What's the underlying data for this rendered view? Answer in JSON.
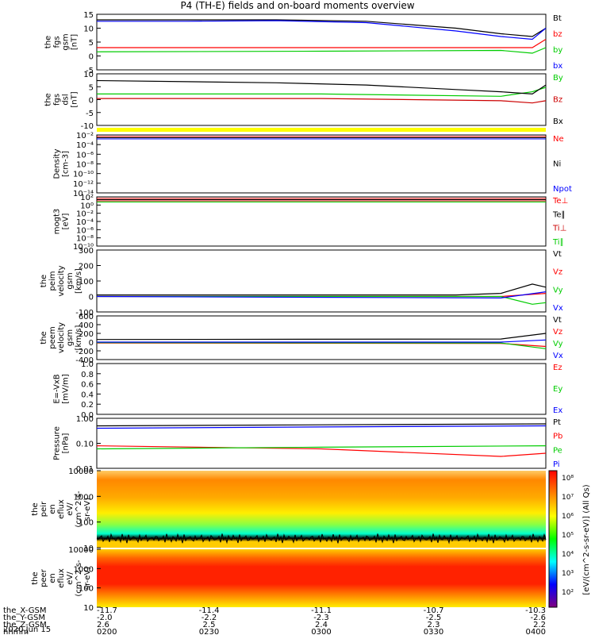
{
  "title": "P4 (TH-E) fields and on-board moments overview",
  "chart_data": {
    "type": "line",
    "title": "P4 (TH-E) fields and on-board moments overview",
    "panels": [
      {
        "id": "fgs",
        "ylabel": [
          "the",
          "fgs",
          "gsm",
          "[nT]"
        ],
        "ylim": [
          -5,
          15
        ],
        "yticks": [
          "15",
          "10",
          "5",
          "0",
          "-5"
        ],
        "series": [
          {
            "name": "Bt",
            "color": "#000000",
            "x": [
              0,
              0.2,
              0.4,
              0.6,
              0.8,
              0.9,
              0.97,
              1
            ],
            "y": [
              13,
              13,
              13,
              12.5,
              10,
              8,
              7,
              10
            ]
          },
          {
            "name": "bz",
            "color": "#ff0000",
            "x": [
              0,
              0.5,
              0.9,
              0.97,
              1
            ],
            "y": [
              3,
              3,
              3,
              3,
              6
            ]
          },
          {
            "name": "by",
            "color": "#00cc00",
            "x": [
              0,
              0.5,
              0.9,
              0.97,
              1
            ],
            "y": [
              1.5,
              1.7,
              2,
              1,
              3
            ]
          },
          {
            "name": "bx",
            "color": "#0000ff",
            "x": [
              0,
              0.2,
              0.4,
              0.6,
              0.8,
              0.9,
              0.97,
              1
            ],
            "y": [
              12.5,
              12.5,
              12.7,
              12,
              9,
              7,
              6,
              10
            ]
          }
        ]
      },
      {
        "id": "fgs2",
        "ylabel": [
          "the",
          "fgs",
          "dsl",
          "[nT]"
        ],
        "ylim": [
          -13,
          10
        ],
        "yticks": [
          "10",
          "5",
          "0",
          "-5",
          "-10"
        ],
        "series": [
          {
            "name": "By",
            "color": "#00cc00",
            "x": [
              0,
              0.5,
              0.9,
              0.97,
              1
            ],
            "y": [
              1,
              1,
              0,
              2,
              4
            ]
          },
          {
            "name": "Bz",
            "color": "#cc0000",
            "x": [
              0,
              0.5,
              0.9,
              0.97,
              1
            ],
            "y": [
              -1,
              -1,
              -2,
              -3,
              -2
            ]
          },
          {
            "name": "Bx",
            "color": "#000000",
            "x": [
              0,
              0.2,
              0.4,
              0.6,
              0.8,
              0.9,
              0.97,
              1
            ],
            "y": [
              7,
              6.5,
              6,
              5,
              3,
              2,
              1,
              5
            ]
          }
        ]
      },
      {
        "id": "density",
        "ylabel": [
          "Density",
          "[cm-3]"
        ],
        "yticks": [
          "10⁻²",
          "10⁻⁴",
          "10⁻⁶",
          "10⁻⁸",
          "10⁻¹⁰",
          "10⁻¹²",
          "10⁻¹⁴"
        ],
        "log": true,
        "series": [
          {
            "name": "Ne",
            "color": "#ff0000"
          },
          {
            "name": "Ni",
            "color": "#000000"
          },
          {
            "name": "Npot",
            "color": "#0000ff"
          }
        ]
      },
      {
        "id": "temp",
        "ylabel": [
          "mogt3",
          "[eV]"
        ],
        "yticks": [
          "10²",
          "10⁰",
          "10⁻²",
          "10⁻⁴",
          "10⁻⁶",
          "10⁻⁸",
          "10⁻¹⁰"
        ],
        "log": true,
        "series": [
          {
            "name": "Te⊥",
            "color": "#ff0000"
          },
          {
            "name": "Te∥",
            "color": "#000000"
          },
          {
            "name": "Ti⊥",
            "color": "#cc0000"
          },
          {
            "name": "Ti∥",
            "color": "#00cc00"
          }
        ]
      },
      {
        "id": "peimvel",
        "ylabel": [
          "the",
          "peim",
          "velocity",
          "gsm",
          "[km/s]"
        ],
        "ylim": [
          -100,
          300
        ],
        "yticks": [
          "300",
          "200",
          "100",
          "0",
          "-100"
        ],
        "series": [
          {
            "name": "Vt",
            "color": "#000000",
            "x": [
              0,
              0.8,
              0.9,
              0.97,
              1
            ],
            "y": [
              10,
              10,
              20,
              80,
              60
            ]
          },
          {
            "name": "Vz",
            "color": "#ff0000",
            "x": [
              0,
              0.9,
              1
            ],
            "y": [
              0,
              0,
              20
            ]
          },
          {
            "name": "Vy",
            "color": "#00cc00",
            "x": [
              0,
              0.9,
              0.97,
              1
            ],
            "y": [
              0,
              0,
              -50,
              -40
            ]
          },
          {
            "name": "Vx",
            "color": "#0000ff",
            "x": [
              0,
              0.9,
              1
            ],
            "y": [
              0,
              -10,
              30
            ]
          }
        ]
      },
      {
        "id": "peemvel",
        "ylabel": [
          "the",
          "peem",
          "velocity",
          "gsm",
          "[km/s]"
        ],
        "ylim": [
          -400,
          600
        ],
        "yticks": [
          "600",
          "400",
          "200",
          "0",
          "-200",
          "-400"
        ],
        "series": [
          {
            "name": "Vt",
            "color": "#000000",
            "x": [
              0,
              0.9,
              1
            ],
            "y": [
              60,
              70,
              200
            ]
          },
          {
            "name": "Vz",
            "color": "#ff0000",
            "x": [
              0,
              0.9,
              1
            ],
            "y": [
              -20,
              -30,
              -100
            ]
          },
          {
            "name": "Vy",
            "color": "#00cc00",
            "x": [
              0,
              0.9,
              1
            ],
            "y": [
              -10,
              -20,
              -150
            ]
          },
          {
            "name": "Vx",
            "color": "#0000ff",
            "x": [
              0,
              0.9,
              1
            ],
            "y": [
              0,
              0,
              50
            ]
          }
        ]
      },
      {
        "id": "efield",
        "ylabel": [
          "E=-VxB",
          "[mV/m]"
        ],
        "ylim": [
          0,
          1
        ],
        "yticks": [
          "1.0",
          "0.8",
          "0.6",
          "0.4",
          "0.2",
          "0.0"
        ],
        "series": [
          {
            "name": "Ez",
            "color": "#ff0000"
          },
          {
            "name": "Ey",
            "color": "#00cc00"
          },
          {
            "name": "Ex",
            "color": "#0000ff"
          }
        ]
      },
      {
        "id": "pressure",
        "ylabel": [
          "Pressure",
          "[nPa]"
        ],
        "yticks": [
          "1.00",
          "0.10",
          "0.01"
        ],
        "log": true,
        "series": [
          {
            "name": "Pt",
            "color": "#000000",
            "x": [
              0,
              0.5,
              1
            ],
            "y": [
              0.5,
              0.55,
              0.6
            ]
          },
          {
            "name": "Pb",
            "color": "#ff0000",
            "x": [
              0,
              0.5,
              0.9,
              1
            ],
            "y": [
              0.08,
              0.06,
              0.03,
              0.04
            ]
          },
          {
            "name": "Pe",
            "color": "#00cc00",
            "x": [
              0,
              0.5,
              1
            ],
            "y": [
              0.06,
              0.07,
              0.08
            ]
          },
          {
            "name": "Pi",
            "color": "#0000ff",
            "x": [
              0,
              0.5,
              1
            ],
            "y": [
              0.4,
              0.45,
              0.5
            ]
          }
        ]
      },
      {
        "id": "peir",
        "type": "heatmap",
        "ylabel": [
          "the",
          "peir",
          "en",
          "eflux",
          "eV/",
          "(cm^2-s-",
          "sr-eV)"
        ],
        "yticks": [
          "10000",
          "1000",
          "100",
          "10"
        ]
      },
      {
        "id": "peer",
        "type": "heatmap",
        "ylabel": [
          "the",
          "peer",
          "en",
          "eflux",
          "eV/",
          "(cm^2-s-",
          "sr-eV)"
        ],
        "yticks": [
          "10000",
          "1000",
          "100",
          "10"
        ]
      }
    ],
    "colorbar": {
      "label": "[eV/(cm^2-s-sr-eV)] (All Qs)",
      "ticks": [
        "10⁸",
        "10⁷",
        "10⁶",
        "10⁵",
        "10⁴",
        "10³",
        "10²"
      ],
      "colors": [
        "#ff0000",
        "#ff8000",
        "#ffff00",
        "#00ff00",
        "#00ffff",
        "#0000ff",
        "#800080"
      ]
    },
    "x_axis": {
      "rows": [
        {
          "label": "the_X-GSM",
          "values": [
            "-11.7",
            "-11.4",
            "-11.1",
            "-10.7",
            "-10.3"
          ]
        },
        {
          "label": "the_Y-GSM",
          "values": [
            "-2.0",
            "-2.2",
            "-2.3",
            "-2.5",
            "-2.6"
          ]
        },
        {
          "label": "the_Z-GSM",
          "values": [
            "2.6",
            "2.5",
            "2.4",
            "2.3",
            "2.2"
          ]
        },
        {
          "label": "hhmm",
          "values": [
            "0200",
            "0230",
            "0300",
            "0330",
            "0400"
          ]
        }
      ],
      "date": "2020 Jun 15"
    }
  }
}
